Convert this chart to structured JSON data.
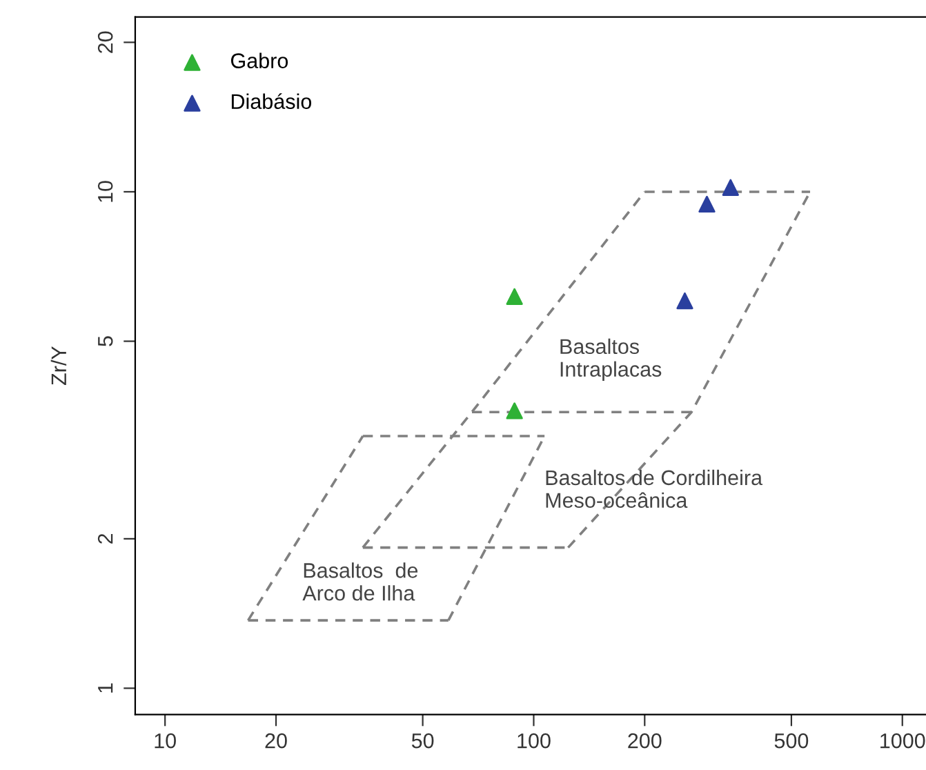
{
  "chart_data": {
    "type": "scatter",
    "ylabel": "Zr/Y",
    "log": "xy",
    "xlim": [
      8.3,
      1200
    ],
    "ylim": [
      0.885,
      22.5
    ],
    "xticks": [
      10,
      20,
      50,
      100,
      200,
      500,
      1000
    ],
    "yticks": [
      1,
      2,
      5,
      10,
      20
    ],
    "grid": false,
    "legend": "top left",
    "marker": "triangle",
    "series": [
      {
        "name": "Gabro",
        "color": "#2eb135",
        "x": [
          88.7,
          88.7
        ],
        "values": [
          6.15,
          3.62
        ]
      },
      {
        "name": "Diabásio",
        "color": "#2a3f9e",
        "x": [
          342,
          295,
          257
        ],
        "values": [
          10.2,
          9.44,
          6.03
        ]
      },
      {
        "type": "line",
        "color": "#808080",
        "line_style": "dashed",
        "marker": "none",
        "x": [
          34.4,
          68,
          200
        ],
        "values": [
          1.92,
          3.6,
          10
        ]
      },
      {
        "type": "line",
        "color": "#808080",
        "line_style": "dashed",
        "marker": "none",
        "x": [
          200,
          562
        ],
        "values": [
          10,
          10
        ]
      },
      {
        "type": "line",
        "color": "#808080",
        "line_style": "dashed",
        "marker": "none",
        "x": [
          124,
          268,
          562
        ],
        "values": [
          1.92,
          3.6,
          10
        ]
      },
      {
        "type": "line",
        "color": "#808080",
        "line_style": "dashed",
        "marker": "none",
        "x": [
          68,
          268
        ],
        "values": [
          3.6,
          3.6
        ]
      },
      {
        "type": "line",
        "color": "#808080",
        "line_style": "dashed",
        "marker": "none",
        "x": [
          34.4,
          124
        ],
        "values": [
          1.92,
          1.92
        ]
      },
      {
        "type": "line",
        "color": "#808080",
        "line_style": "dashed",
        "marker": "none",
        "x": [
          16.8,
          58.7
        ],
        "values": [
          1.37,
          1.37
        ]
      },
      {
        "type": "line",
        "color": "#808080",
        "line_style": "dashed",
        "marker": "none",
        "x": [
          58.7,
          107
        ],
        "values": [
          1.37,
          3.22
        ]
      },
      {
        "type": "line",
        "color": "#808080",
        "line_style": "dashed",
        "marker": "none",
        "x": [
          34.4,
          107
        ],
        "values": [
          3.22,
          3.22
        ]
      },
      {
        "type": "line",
        "color": "#808080",
        "line_style": "dashed",
        "marker": "none",
        "x": [
          16.8,
          34.4
        ],
        "values": [
          1.37,
          3.22
        ]
      }
    ],
    "annotations": [
      "Basaltos\nIntraplacas",
      "Basaltos de Cordilheira\nMeso-oceânica",
      "Basaltos  de\nArco de Ilha"
    ]
  }
}
